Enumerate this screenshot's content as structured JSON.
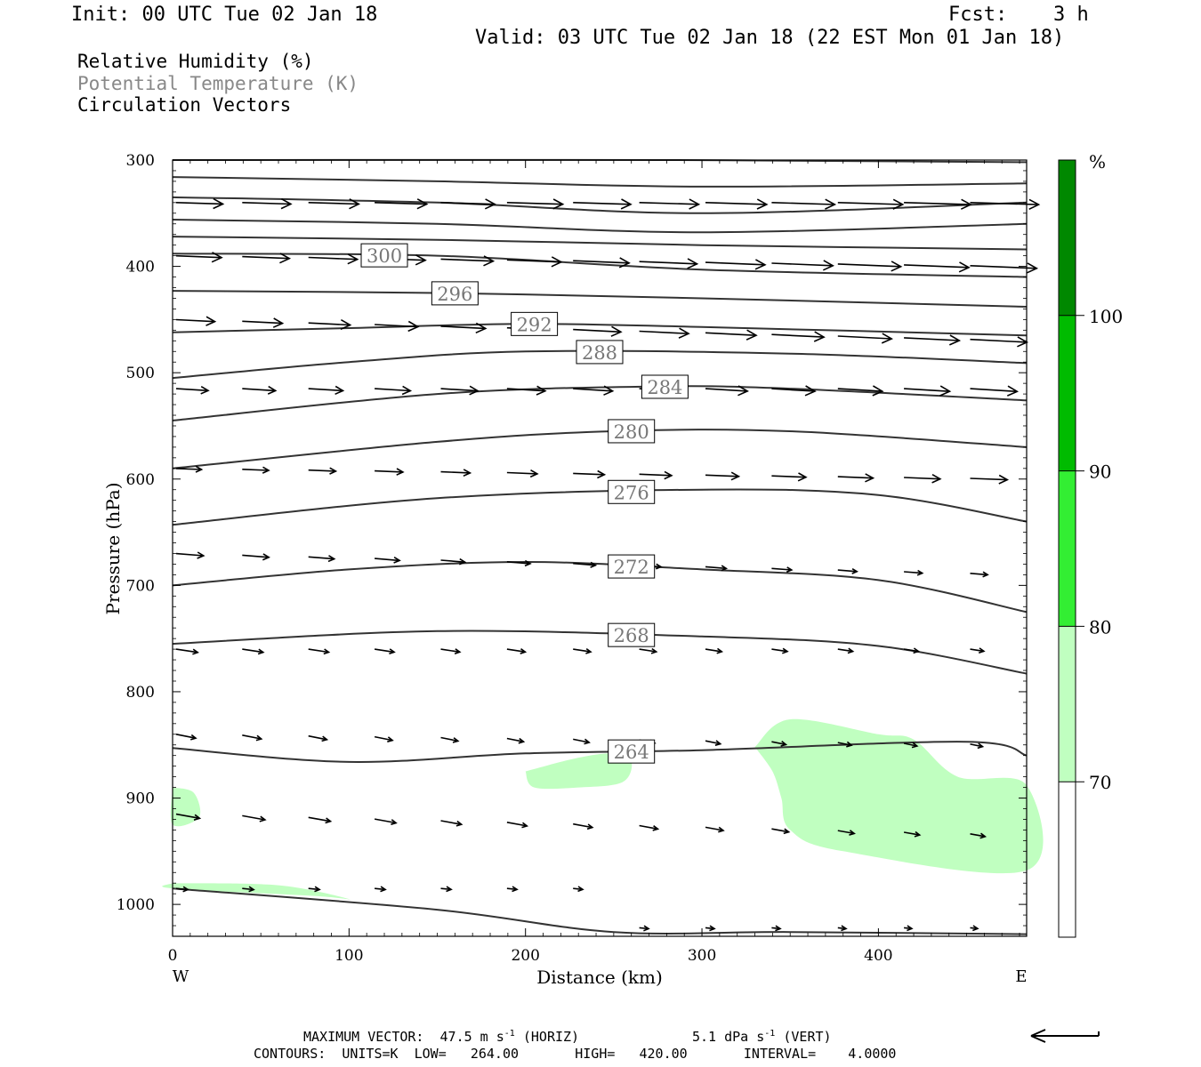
{
  "header": {
    "init": "Init: 00 UTC Tue 02 Jan 18",
    "fcst_label": "Fcst:",
    "fcst_value": "3 h",
    "valid": "Valid: 03 UTC Tue 02 Jan 18 (22 EST Mon 01 Jan 18)"
  },
  "fields": {
    "rh": "Relative Humidity (%)",
    "theta": "Potential Temperature (K)",
    "vectors": "Circulation Vectors"
  },
  "colors": {
    "rh70": "#c0ffc0",
    "rh80": "#33ee33",
    "rh90": "#00bb00",
    "rh100": "#008800",
    "contour": "#333333",
    "theta_label_color": "#777777"
  },
  "chart_data": {
    "type": "cross-section",
    "xlabel": "Distance (km)",
    "ylabel": "Pressure (hPa)",
    "xlim": [
      0,
      484
    ],
    "ylim": [
      1030,
      300
    ],
    "x_ticks": [
      "0",
      "100",
      "200",
      "300",
      "400"
    ],
    "y_ticks": [
      "300",
      "400",
      "500",
      "600",
      "700",
      "800",
      "900",
      "1000"
    ],
    "left_end": "W",
    "right_end": "E",
    "theta_contours": [
      {
        "value": "",
        "points": [
          [
            0,
            300
          ],
          [
            280,
            300
          ],
          [
            484,
            302
          ]
        ]
      },
      {
        "value": "",
        "points": [
          [
            0,
            316
          ],
          [
            150,
            320
          ],
          [
            300,
            325
          ],
          [
            484,
            322
          ]
        ]
      },
      {
        "value": "",
        "points": [
          [
            0,
            335
          ],
          [
            150,
            340
          ],
          [
            300,
            350
          ],
          [
            484,
            340
          ]
        ]
      },
      {
        "value": "",
        "points": [
          [
            0,
            356
          ],
          [
            150,
            360
          ],
          [
            300,
            368
          ],
          [
            484,
            360
          ]
        ]
      },
      {
        "value": "",
        "points": [
          [
            0,
            372
          ],
          [
            150,
            375
          ],
          [
            300,
            380
          ],
          [
            484,
            384
          ]
        ]
      },
      {
        "value": "300",
        "points": [
          [
            0,
            388
          ],
          [
            150,
            390
          ],
          [
            300,
            403
          ],
          [
            484,
            410
          ]
        ]
      },
      {
        "value": "296",
        "points": [
          [
            0,
            423
          ],
          [
            150,
            425
          ],
          [
            300,
            430
          ],
          [
            484,
            438
          ]
        ]
      },
      {
        "value": "292",
        "points": [
          [
            0,
            462
          ],
          [
            100,
            458
          ],
          [
            200,
            454
          ],
          [
            300,
            457
          ],
          [
            484,
            465
          ]
        ]
      },
      {
        "value": "288",
        "points": [
          [
            0,
            505
          ],
          [
            100,
            490
          ],
          [
            200,
            480
          ],
          [
            350,
            482
          ],
          [
            484,
            491
          ]
        ]
      },
      {
        "value": "284",
        "points": [
          [
            0,
            545
          ],
          [
            150,
            520
          ],
          [
            270,
            513
          ],
          [
            350,
            515
          ],
          [
            484,
            526
          ]
        ]
      },
      {
        "value": "280",
        "points": [
          [
            0,
            590
          ],
          [
            150,
            565
          ],
          [
            250,
            555
          ],
          [
            350,
            555
          ],
          [
            484,
            570
          ]
        ]
      },
      {
        "value": "276",
        "points": [
          [
            0,
            643
          ],
          [
            150,
            618
          ],
          [
            300,
            610
          ],
          [
            400,
            615
          ],
          [
            484,
            640
          ]
        ]
      },
      {
        "value": "272",
        "points": [
          [
            0,
            700
          ],
          [
            100,
            685
          ],
          [
            200,
            678
          ],
          [
            300,
            685
          ],
          [
            400,
            695
          ],
          [
            484,
            725
          ]
        ]
      },
      {
        "value": "268",
        "points": [
          [
            0,
            755
          ],
          [
            150,
            743
          ],
          [
            300,
            748
          ],
          [
            400,
            757
          ],
          [
            484,
            783
          ]
        ]
      },
      {
        "value": "264",
        "points": [
          [
            0,
            853
          ],
          [
            100,
            866
          ],
          [
            200,
            858
          ],
          [
            300,
            855
          ],
          [
            450,
            847
          ],
          [
            484,
            860
          ]
        ]
      },
      {
        "value": "",
        "points": [
          [
            0,
            985
          ],
          [
            150,
            1005
          ],
          [
            250,
            1026
          ],
          [
            350,
            1026
          ],
          [
            484,
            1028
          ]
        ]
      }
    ],
    "rh_regions": [
      {
        "level": "70-80",
        "points": [
          [
            330,
            852
          ],
          [
            350,
            826
          ],
          [
            400,
            840
          ],
          [
            420,
            845
          ],
          [
            445,
            880
          ],
          [
            484,
            888
          ],
          [
            484,
            968
          ],
          [
            380,
            950
          ],
          [
            350,
            930
          ],
          [
            345,
            900
          ],
          [
            340,
            875
          ]
        ]
      },
      {
        "level": "70-80",
        "points": [
          [
            200,
            875
          ],
          [
            230,
            862
          ],
          [
            250,
            858
          ],
          [
            260,
            865
          ],
          [
            255,
            885
          ],
          [
            230,
            890
          ],
          [
            205,
            890
          ]
        ]
      },
      {
        "level": "70-80",
        "points": [
          [
            0,
            890
          ],
          [
            12,
            895
          ],
          [
            15,
            918
          ],
          [
            0,
            925
          ]
        ]
      },
      {
        "level": "70-80",
        "points": [
          [
            0,
            980
          ],
          [
            60,
            982
          ],
          [
            100,
            995
          ],
          [
            80,
            992
          ],
          [
            0,
            985
          ]
        ]
      }
    ],
    "vectors_note": "Circulation Vectors",
    "colorbar": {
      "unit": "%",
      "levels": [
        "70",
        "80",
        "90",
        "100"
      ]
    },
    "footer": {
      "max_vector": "MAXIMUM VECTOR:  47.5 m s",
      "max_vector_horiz": "(HORIZ)",
      "vert": "5.1 dPa s",
      "vert_label": "(VERT)",
      "exp": "-1",
      "contours": "CONTOURS:  UNITS=K  LOW=   264.00       HIGH=   420.00       INTERVAL=    4.0000"
    }
  }
}
